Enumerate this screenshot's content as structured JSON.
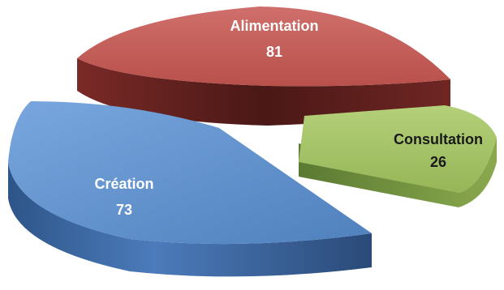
{
  "chart_data": {
    "type": "pie",
    "style": "3d-exploded",
    "slices": [
      {
        "label": "Alimentation",
        "value": 81,
        "color": "#c0504d",
        "side_color": "#5c1f1d"
      },
      {
        "label": "Consultation",
        "value": 26,
        "color": "#9bbb59",
        "side_color": "#4f6a2a"
      },
      {
        "label": "Création",
        "value": 73,
        "color": "#4f81bd",
        "side_color": "#2a4d7a"
      }
    ]
  }
}
